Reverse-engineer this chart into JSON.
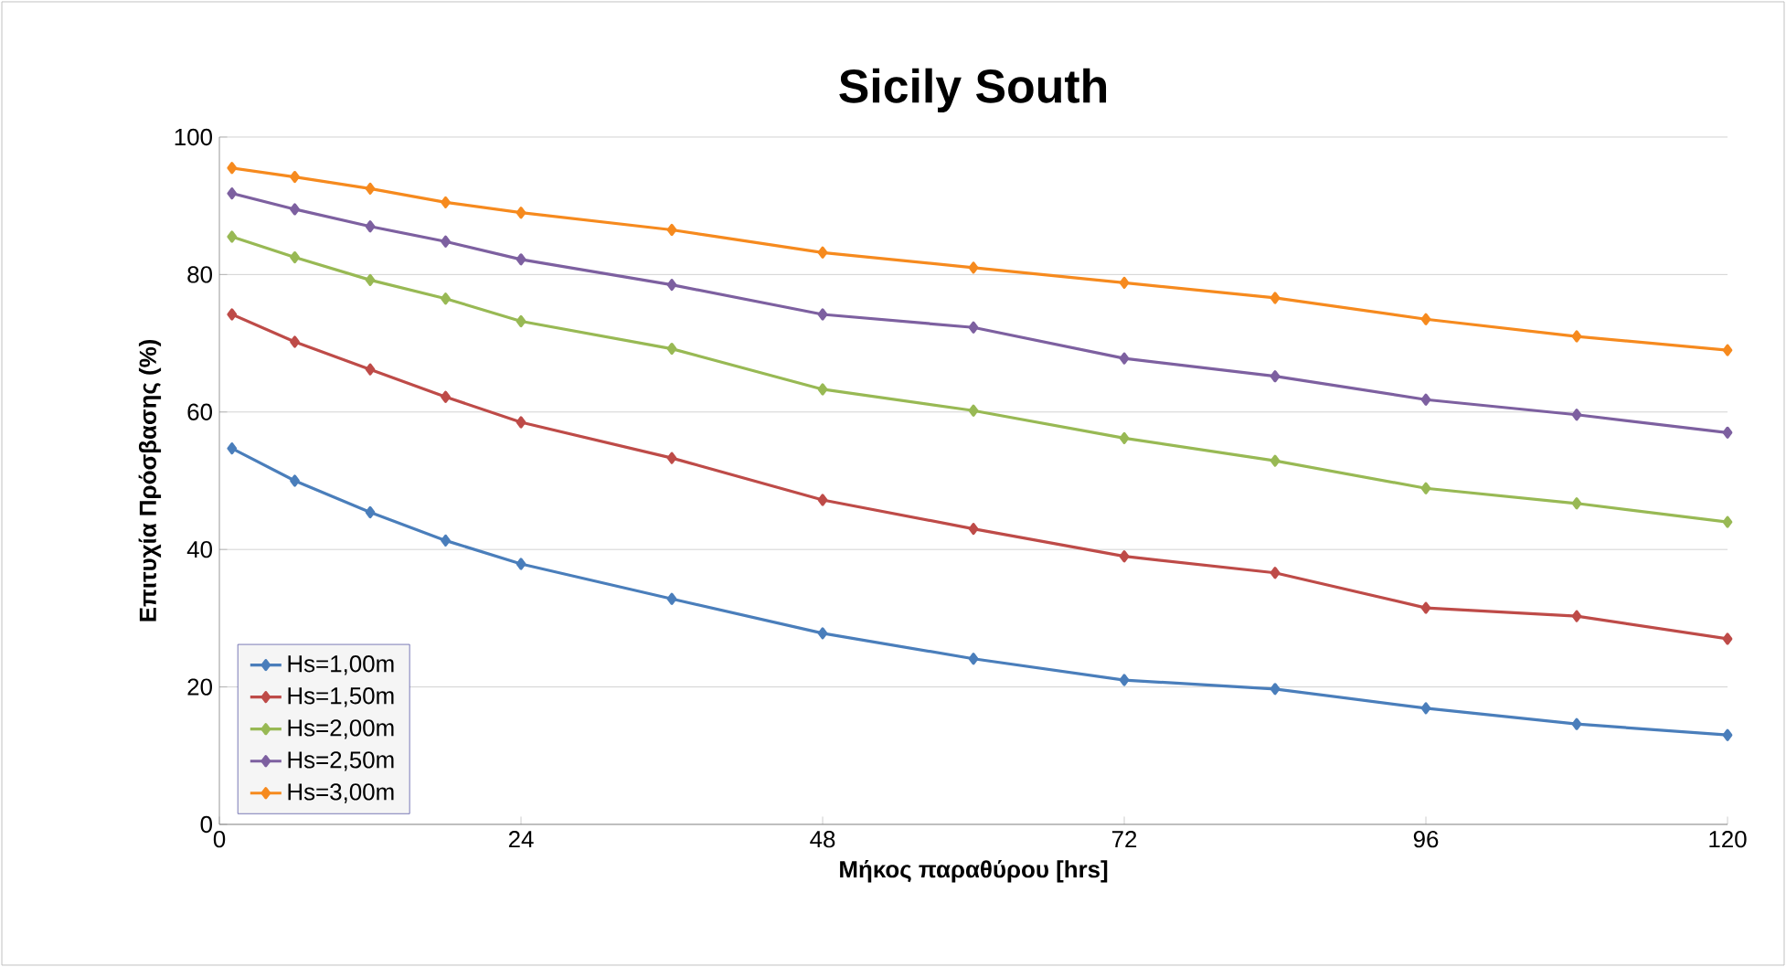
{
  "chart_data": {
    "type": "line",
    "title": "Sicily  South",
    "xlabel": "Μήκος παραθύρου [hrs]",
    "ylabel": "Επιτυχία Πρόσβασης  (%)",
    "x": [
      1,
      6,
      12,
      18,
      24,
      36,
      48,
      60,
      72,
      84,
      96,
      108,
      120
    ],
    "xlim": [
      0,
      120
    ],
    "xticks": [
      0,
      24,
      48,
      72,
      96,
      120
    ],
    "ylim": [
      0,
      100
    ],
    "yticks": [
      0,
      20,
      40,
      60,
      80,
      100
    ],
    "grid": "y",
    "legend": "bottom left",
    "marker": "diamond",
    "line_style": "solid",
    "series": [
      {
        "name": "Hs=1,00m",
        "color": "#4a7ebb",
        "values": [
          54.7,
          50,
          45.4,
          41.3,
          37.9,
          32.8,
          27.8,
          24.1,
          21,
          19.7,
          16.9,
          14.6,
          13
        ]
      },
      {
        "name": "Hs=1,50m",
        "color": "#be4b48",
        "values": [
          74.2,
          70.2,
          66.2,
          62.2,
          58.5,
          53.3,
          47.2,
          43,
          39,
          36.6,
          31.5,
          30.3,
          27
        ]
      },
      {
        "name": "Hs=2,00m",
        "color": "#98b954",
        "values": [
          85.5,
          82.5,
          79.2,
          76.5,
          73.2,
          69.2,
          63.3,
          60.2,
          56.2,
          52.9,
          48.9,
          46.7,
          44
        ]
      },
      {
        "name": "Hs=2,50m",
        "color": "#7d60a0",
        "values": [
          91.8,
          89.5,
          87,
          84.8,
          82.2,
          78.5,
          74.2,
          72.3,
          67.8,
          65.2,
          61.8,
          59.6,
          57
        ]
      },
      {
        "name": "Hs=3,00m",
        "color": "#f68a1e",
        "values": [
          95.5,
          94.2,
          92.5,
          90.5,
          89,
          86.5,
          83.2,
          81,
          78.8,
          76.6,
          73.5,
          71,
          69
        ]
      }
    ]
  }
}
